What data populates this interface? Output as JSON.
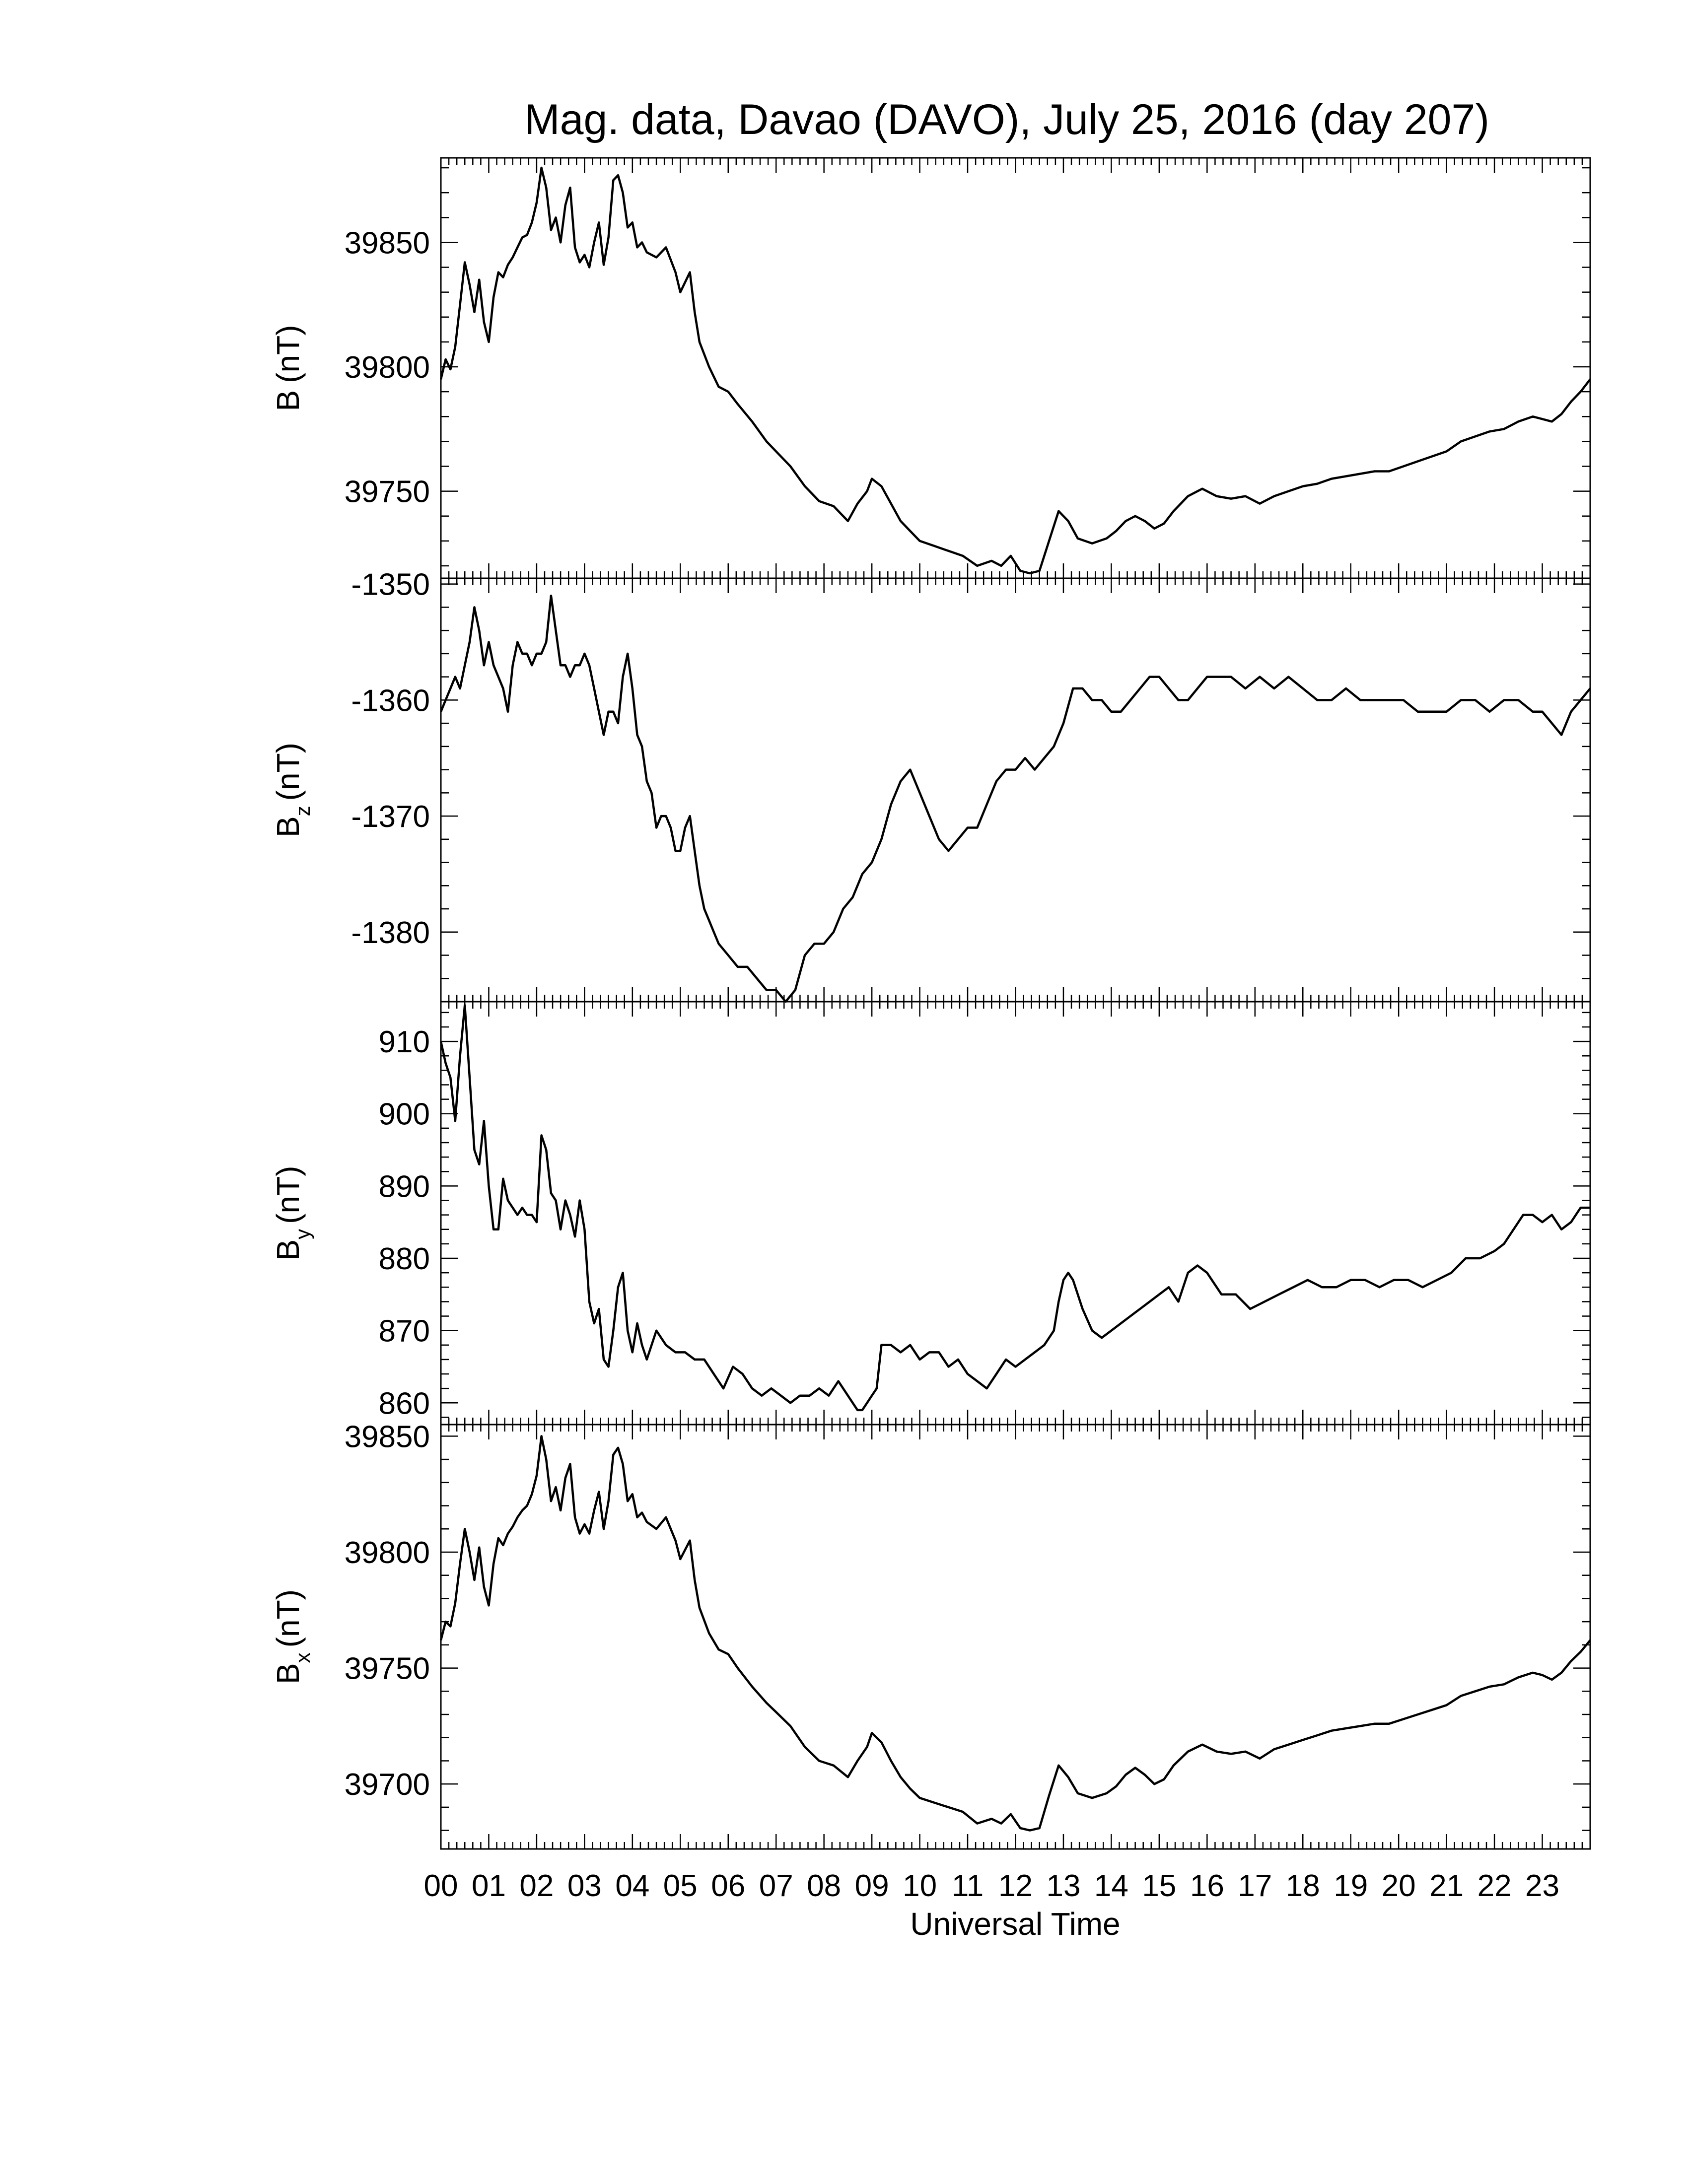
{
  "chart_data": {
    "title": "Mag. data, Davao (DAVO), July 25, 2016 (day 207)",
    "xlabel": "Universal Time",
    "x_unit": "hours UT",
    "x_ticks": [
      "00",
      "01",
      "02",
      "03",
      "04",
      "05",
      "06",
      "07",
      "08",
      "09",
      "10",
      "11",
      "12",
      "13",
      "14",
      "15",
      "16",
      "17",
      "18",
      "19",
      "20",
      "21",
      "22",
      "23"
    ],
    "xlim": [
      0,
      24
    ],
    "panels": [
      {
        "type": "line",
        "label_main": "B",
        "label_sub": "",
        "label_unit": "(nT)",
        "ylim": [
          39715,
          39884
        ],
        "yticks": [
          39750,
          39800,
          39850
        ],
        "x": [
          0,
          0.1,
          0.2,
          0.3,
          0.4,
          0.5,
          0.6,
          0.7,
          0.8,
          0.9,
          1.0,
          1.1,
          1.2,
          1.3,
          1.4,
          1.5,
          1.6,
          1.7,
          1.8,
          1.9,
          2.0,
          2.1,
          2.2,
          2.3,
          2.4,
          2.5,
          2.6,
          2.7,
          2.8,
          2.9,
          3.0,
          3.1,
          3.2,
          3.3,
          3.4,
          3.5,
          3.6,
          3.7,
          3.8,
          3.9,
          4.0,
          4.1,
          4.2,
          4.3,
          4.5,
          4.7,
          4.9,
          5.0,
          5.2,
          5.3,
          5.4,
          5.6,
          5.8,
          6.0,
          6.2,
          6.5,
          6.8,
          7.0,
          7.3,
          7.6,
          7.9,
          8.2,
          8.5,
          8.7,
          8.9,
          9.0,
          9.2,
          9.4,
          9.6,
          9.8,
          10.0,
          10.3,
          10.6,
          10.9,
          11.2,
          11.5,
          11.7,
          11.9,
          12.1,
          12.3,
          12.5,
          12.7,
          12.9,
          13.1,
          13.3,
          13.6,
          13.9,
          14.1,
          14.3,
          14.5,
          14.7,
          14.9,
          15.1,
          15.3,
          15.6,
          15.9,
          16.2,
          16.5,
          16.8,
          17.1,
          17.4,
          17.7,
          18.0,
          18.3,
          18.6,
          18.9,
          19.2,
          19.5,
          19.8,
          20.1,
          20.4,
          20.7,
          21.0,
          21.3,
          21.6,
          21.9,
          22.2,
          22.5,
          22.8,
          23.0,
          23.2,
          23.4,
          23.6,
          23.8,
          24.0
        ],
        "values": [
          39795,
          39803,
          39799,
          39808,
          39825,
          39842,
          39833,
          39822,
          39835,
          39818,
          39810,
          39828,
          39838,
          39836,
          39841,
          39844,
          39848,
          39852,
          39853,
          39858,
          39866,
          39880,
          39872,
          39855,
          39860,
          39850,
          39865,
          39872,
          39848,
          39842,
          39845,
          39840,
          39850,
          39858,
          39841,
          39852,
          39875,
          39877,
          39870,
          39856,
          39858,
          39848,
          39850,
          39846,
          39844,
          39848,
          39838,
          39830,
          39838,
          39822,
          39810,
          39800,
          39792,
          39790,
          39785,
          39778,
          39770,
          39766,
          39760,
          39752,
          39746,
          39744,
          39738,
          39745,
          39750,
          39755,
          39752,
          39745,
          39738,
          39734,
          39730,
          39728,
          39726,
          39724,
          39720,
          39722,
          39720,
          39724,
          39718,
          39717,
          39718,
          39730,
          39742,
          39738,
          39731,
          39729,
          39731,
          39734,
          39738,
          39740,
          39738,
          39735,
          39737,
          39742,
          39748,
          39751,
          39748,
          39747,
          39748,
          39745,
          39748,
          39750,
          39752,
          39753,
          39755,
          39756,
          39757,
          39758,
          39758,
          39760,
          39762,
          39764,
          39766,
          39770,
          39772,
          39774,
          39775,
          39778,
          39780,
          39779,
          39778,
          39781,
          39786,
          39790,
          39795
        ]
      },
      {
        "type": "line",
        "label_main": "B",
        "label_sub": "z",
        "label_unit": "(nT)",
        "ylim": [
          -1386,
          -1349.5
        ],
        "yticks": [
          -1350,
          -1360,
          -1370,
          -1380
        ],
        "x": [
          0,
          0.1,
          0.2,
          0.3,
          0.4,
          0.5,
          0.6,
          0.7,
          0.8,
          0.9,
          1.0,
          1.1,
          1.2,
          1.3,
          1.4,
          1.5,
          1.6,
          1.7,
          1.8,
          1.9,
          2.0,
          2.1,
          2.2,
          2.3,
          2.4,
          2.5,
          2.6,
          2.7,
          2.8,
          2.9,
          3.0,
          3.1,
          3.2,
          3.3,
          3.4,
          3.5,
          3.6,
          3.7,
          3.8,
          3.9,
          4.0,
          4.1,
          4.2,
          4.3,
          4.4,
          4.5,
          4.6,
          4.7,
          4.8,
          4.9,
          5.0,
          5.1,
          5.2,
          5.3,
          5.4,
          5.5,
          5.6,
          5.7,
          5.8,
          6.0,
          6.2,
          6.4,
          6.6,
          6.8,
          7.0,
          7.2,
          7.4,
          7.6,
          7.8,
          8.0,
          8.2,
          8.4,
          8.6,
          8.8,
          9.0,
          9.2,
          9.4,
          9.6,
          9.8,
          10.0,
          10.2,
          10.4,
          10.6,
          10.8,
          11.0,
          11.2,
          11.4,
          11.6,
          11.8,
          12.0,
          12.2,
          12.4,
          12.6,
          12.8,
          13.0,
          13.2,
          13.4,
          13.6,
          13.8,
          14.0,
          14.2,
          14.4,
          14.6,
          14.8,
          15.0,
          15.2,
          15.4,
          15.6,
          15.8,
          16.0,
          16.2,
          16.5,
          16.8,
          17.1,
          17.4,
          17.7,
          18.0,
          18.3,
          18.6,
          18.9,
          19.2,
          19.5,
          19.8,
          20.1,
          20.4,
          20.7,
          21.0,
          21.3,
          21.6,
          21.9,
          22.2,
          22.5,
          22.8,
          23.0,
          23.2,
          23.4,
          23.6,
          23.8,
          24.0
        ],
        "values": [
          -1361,
          -1360,
          -1359,
          -1358,
          -1359,
          -1357,
          -1355,
          -1352,
          -1354,
          -1357,
          -1355,
          -1357,
          -1358,
          -1359,
          -1361,
          -1357,
          -1355,
          -1356,
          -1356,
          -1357,
          -1356,
          -1356,
          -1355,
          -1351,
          -1354,
          -1357,
          -1357,
          -1358,
          -1357,
          -1357,
          -1356,
          -1357,
          -1359,
          -1361,
          -1363,
          -1361,
          -1361,
          -1362,
          -1358,
          -1356,
          -1359,
          -1363,
          -1364,
          -1367,
          -1368,
          -1371,
          -1370,
          -1370,
          -1371,
          -1373,
          -1373,
          -1371,
          -1370,
          -1373,
          -1376,
          -1378,
          -1379,
          -1380,
          -1381,
          -1382,
          -1383,
          -1383,
          -1384,
          -1385,
          -1385,
          -1386,
          -1385,
          -1382,
          -1381,
          -1381,
          -1380,
          -1378,
          -1377,
          -1375,
          -1374,
          -1372,
          -1369,
          -1367,
          -1366,
          -1368,
          -1370,
          -1372,
          -1373,
          -1372,
          -1371,
          -1371,
          -1369,
          -1367,
          -1366,
          -1366,
          -1365,
          -1366,
          -1365,
          -1364,
          -1362,
          -1359,
          -1359,
          -1360,
          -1360,
          -1361,
          -1361,
          -1360,
          -1359,
          -1358,
          -1358,
          -1359,
          -1360,
          -1360,
          -1359,
          -1358,
          -1358,
          -1358,
          -1359,
          -1358,
          -1359,
          -1358,
          -1359,
          -1360,
          -1360,
          -1359,
          -1360,
          -1360,
          -1360,
          -1360,
          -1361,
          -1361,
          -1361,
          -1360,
          -1360,
          -1361,
          -1360,
          -1360,
          -1361,
          -1361,
          -1362,
          -1363,
          -1361,
          -1360,
          -1359
        ]
      },
      {
        "type": "line",
        "label_main": "B",
        "label_sub": "y",
        "label_unit": "(nT)",
        "ylim": [
          857,
          915.5
        ],
        "yticks": [
          860,
          870,
          880,
          890,
          900,
          910
        ],
        "x": [
          0,
          0.1,
          0.2,
          0.3,
          0.4,
          0.5,
          0.6,
          0.7,
          0.8,
          0.9,
          1.0,
          1.1,
          1.2,
          1.3,
          1.4,
          1.5,
          1.6,
          1.7,
          1.8,
          1.9,
          2.0,
          2.1,
          2.2,
          2.3,
          2.4,
          2.5,
          2.6,
          2.7,
          2.8,
          2.9,
          3.0,
          3.1,
          3.2,
          3.3,
          3.4,
          3.5,
          3.6,
          3.7,
          3.8,
          3.9,
          4.0,
          4.1,
          4.2,
          4.3,
          4.5,
          4.7,
          4.9,
          5.1,
          5.3,
          5.5,
          5.7,
          5.9,
          6.1,
          6.3,
          6.5,
          6.7,
          6.9,
          7.1,
          7.3,
          7.5,
          7.7,
          7.9,
          8.1,
          8.3,
          8.5,
          8.7,
          8.8,
          8.9,
          9.0,
          9.1,
          9.2,
          9.4,
          9.6,
          9.8,
          10.0,
          10.2,
          10.4,
          10.6,
          10.8,
          11.0,
          11.2,
          11.4,
          11.6,
          11.8,
          12.0,
          12.2,
          12.4,
          12.6,
          12.8,
          12.9,
          13.0,
          13.1,
          13.2,
          13.4,
          13.6,
          13.8,
          14.0,
          14.2,
          14.4,
          14.6,
          14.8,
          15.0,
          15.2,
          15.4,
          15.6,
          15.8,
          16.0,
          16.3,
          16.6,
          16.9,
          17.2,
          17.5,
          17.8,
          18.1,
          18.4,
          18.7,
          19.0,
          19.3,
          19.6,
          19.9,
          20.2,
          20.5,
          20.8,
          21.1,
          21.4,
          21.7,
          22.0,
          22.2,
          22.4,
          22.6,
          22.8,
          23.0,
          23.2,
          23.4,
          23.6,
          23.8,
          24.0
        ],
        "values": [
          910,
          907,
          905,
          899,
          908,
          915,
          905,
          895,
          893,
          899,
          890,
          884,
          884,
          891,
          888,
          887,
          886,
          887,
          886,
          886,
          885,
          897,
          895,
          889,
          888,
          884,
          888,
          886,
          883,
          888,
          884,
          874,
          871,
          873,
          866,
          865,
          870,
          876,
          878,
          870,
          867,
          871,
          868,
          866,
          870,
          868,
          867,
          867,
          866,
          866,
          864,
          862,
          865,
          864,
          862,
          861,
          862,
          861,
          860,
          861,
          861,
          862,
          861,
          863,
          861,
          859,
          859,
          860,
          861,
          862,
          868,
          868,
          867,
          868,
          866,
          867,
          867,
          865,
          866,
          864,
          863,
          862,
          864,
          866,
          865,
          866,
          867,
          868,
          870,
          874,
          877,
          878,
          877,
          873,
          870,
          869,
          870,
          871,
          872,
          873,
          874,
          875,
          876,
          874,
          878,
          879,
          878,
          875,
          875,
          873,
          874,
          875,
          876,
          877,
          876,
          876,
          877,
          877,
          876,
          877,
          877,
          876,
          877,
          878,
          880,
          880,
          881,
          882,
          884,
          886,
          886,
          885,
          886,
          884,
          885,
          887,
          887
        ]
      },
      {
        "type": "line",
        "label_main": "B",
        "label_sub": "x",
        "label_unit": "(nT)",
        "ylim": [
          39672,
          39855
        ],
        "yticks": [
          39700,
          39750,
          39800,
          39850
        ],
        "x": [
          0,
          0.1,
          0.2,
          0.3,
          0.4,
          0.5,
          0.6,
          0.7,
          0.8,
          0.9,
          1.0,
          1.1,
          1.2,
          1.3,
          1.4,
          1.5,
          1.6,
          1.7,
          1.8,
          1.9,
          2.0,
          2.1,
          2.2,
          2.3,
          2.4,
          2.5,
          2.6,
          2.7,
          2.8,
          2.9,
          3.0,
          3.1,
          3.2,
          3.3,
          3.4,
          3.5,
          3.6,
          3.7,
          3.8,
          3.9,
          4.0,
          4.1,
          4.2,
          4.3,
          4.5,
          4.7,
          4.9,
          5.0,
          5.2,
          5.3,
          5.4,
          5.6,
          5.8,
          6.0,
          6.2,
          6.5,
          6.8,
          7.0,
          7.3,
          7.6,
          7.9,
          8.2,
          8.5,
          8.7,
          8.9,
          9.0,
          9.2,
          9.4,
          9.6,
          9.8,
          10.0,
          10.3,
          10.6,
          10.9,
          11.2,
          11.5,
          11.7,
          11.9,
          12.1,
          12.3,
          12.5,
          12.7,
          12.9,
          13.1,
          13.3,
          13.6,
          13.9,
          14.1,
          14.3,
          14.5,
          14.7,
          14.9,
          15.1,
          15.3,
          15.6,
          15.9,
          16.2,
          16.5,
          16.8,
          17.1,
          17.4,
          17.7,
          18.0,
          18.3,
          18.6,
          18.9,
          19.2,
          19.5,
          19.8,
          20.1,
          20.4,
          20.7,
          21.0,
          21.3,
          21.6,
          21.9,
          22.2,
          22.5,
          22.8,
          23.0,
          23.2,
          23.4,
          23.6,
          23.8,
          24.0
        ],
        "values": [
          39762,
          39770,
          39768,
          39778,
          39795,
          39810,
          39800,
          39788,
          39802,
          39785,
          39777,
          39795,
          39806,
          39803,
          39808,
          39811,
          39815,
          39818,
          39820,
          39825,
          39833,
          39850,
          39840,
          39822,
          39828,
          39818,
          39832,
          39838,
          39815,
          39808,
          39812,
          39808,
          39818,
          39826,
          39810,
          39822,
          39842,
          39845,
          39838,
          39822,
          39825,
          39815,
          39817,
          39813,
          39810,
          39815,
          39805,
          39797,
          39805,
          39788,
          39776,
          39765,
          39758,
          39756,
          39750,
          39742,
          39735,
          39731,
          39725,
          39716,
          39710,
          39708,
          39703,
          39710,
          39716,
          39722,
          39718,
          39710,
          39703,
          39698,
          39694,
          39692,
          39690,
          39688,
          39683,
          39685,
          39683,
          39687,
          39681,
          39680,
          39681,
          39695,
          39708,
          39703,
          39696,
          39694,
          39696,
          39699,
          39704,
          39707,
          39704,
          39700,
          39702,
          39708,
          39714,
          39717,
          39714,
          39713,
          39714,
          39711,
          39715,
          39717,
          39719,
          39721,
          39723,
          39724,
          39725,
          39726,
          39726,
          39728,
          39730,
          39732,
          39734,
          39738,
          39740,
          39742,
          39743,
          39746,
          39748,
          39747,
          39745,
          39748,
          39753,
          39757,
          39762
        ]
      }
    ]
  }
}
